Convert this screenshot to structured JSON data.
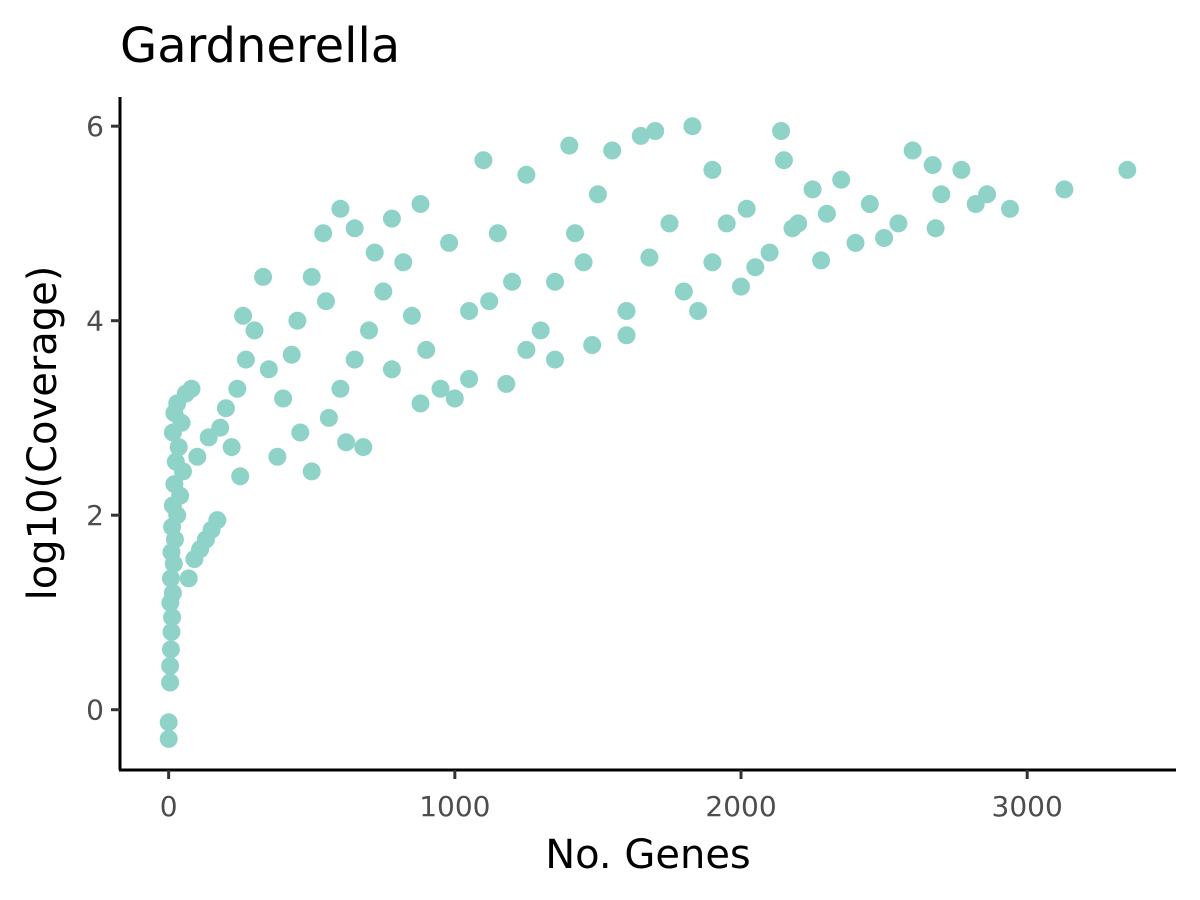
{
  "chart_data": {
    "type": "scatter",
    "title": "Gardnerella",
    "xlabel": "No. Genes",
    "ylabel": "log10(Coverage)",
    "xlim": [
      -170,
      3520
    ],
    "ylim": [
      -0.62,
      6.3
    ],
    "xticks": [
      0,
      1000,
      2000,
      3000
    ],
    "xtick_labels": [
      "0",
      "1000",
      "2000",
      "3000"
    ],
    "yticks": [
      0,
      2,
      4,
      6
    ],
    "ytick_labels": [
      "0",
      "2",
      "4",
      "6"
    ],
    "grid": false,
    "legend": "none",
    "point_color": "#8fd3c8",
    "series": [
      {
        "name": "",
        "points": [
          [
            0,
            -0.3
          ],
          [
            0,
            -0.13
          ],
          [
            5,
            0.28
          ],
          [
            5,
            0.45
          ],
          [
            8,
            0.62
          ],
          [
            10,
            0.8
          ],
          [
            12,
            0.95
          ],
          [
            6,
            1.1
          ],
          [
            15,
            1.2
          ],
          [
            8,
            1.35
          ],
          [
            18,
            1.5
          ],
          [
            10,
            1.62
          ],
          [
            22,
            1.75
          ],
          [
            12,
            1.88
          ],
          [
            30,
            2.0
          ],
          [
            15,
            2.1
          ],
          [
            40,
            2.2
          ],
          [
            20,
            2.32
          ],
          [
            50,
            2.45
          ],
          [
            25,
            2.55
          ],
          [
            35,
            2.7
          ],
          [
            15,
            2.85
          ],
          [
            45,
            2.95
          ],
          [
            20,
            3.05
          ],
          [
            30,
            3.15
          ],
          [
            60,
            3.25
          ],
          [
            80,
            3.3
          ],
          [
            70,
            1.35
          ],
          [
            90,
            1.55
          ],
          [
            110,
            1.65
          ],
          [
            130,
            1.75
          ],
          [
            150,
            1.85
          ],
          [
            170,
            1.95
          ],
          [
            100,
            2.6
          ],
          [
            140,
            2.8
          ],
          [
            180,
            2.9
          ],
          [
            220,
            2.7
          ],
          [
            250,
            2.4
          ],
          [
            200,
            3.1
          ],
          [
            240,
            3.3
          ],
          [
            270,
            3.6
          ],
          [
            260,
            4.05
          ],
          [
            330,
            4.45
          ],
          [
            300,
            3.9
          ],
          [
            350,
            3.5
          ],
          [
            400,
            3.2
          ],
          [
            380,
            2.6
          ],
          [
            460,
            2.85
          ],
          [
            500,
            2.45
          ],
          [
            560,
            3.0
          ],
          [
            600,
            3.3
          ],
          [
            620,
            2.75
          ],
          [
            680,
            2.7
          ],
          [
            650,
            3.6
          ],
          [
            700,
            3.9
          ],
          [
            750,
            4.3
          ],
          [
            720,
            4.7
          ],
          [
            600,
            5.15
          ],
          [
            540,
            4.9
          ],
          [
            650,
            4.95
          ],
          [
            500,
            4.45
          ],
          [
            450,
            4.0
          ],
          [
            430,
            3.65
          ],
          [
            550,
            4.2
          ],
          [
            780,
            5.05
          ],
          [
            820,
            4.6
          ],
          [
            880,
            5.2
          ],
          [
            900,
            3.7
          ],
          [
            950,
            3.3
          ],
          [
            1000,
            3.2
          ],
          [
            1050,
            4.1
          ],
          [
            1100,
            5.65
          ],
          [
            1150,
            4.9
          ],
          [
            1200,
            4.4
          ],
          [
            1250,
            3.7
          ],
          [
            1300,
            3.9
          ],
          [
            1350,
            3.6
          ],
          [
            1400,
            5.8
          ],
          [
            1450,
            4.6
          ],
          [
            1500,
            5.3
          ],
          [
            1550,
            5.75
          ],
          [
            1600,
            4.1
          ],
          [
            1650,
            5.9
          ],
          [
            1700,
            5.95
          ],
          [
            1750,
            5.0
          ],
          [
            1800,
            4.3
          ],
          [
            1850,
            4.1
          ],
          [
            1900,
            4.6
          ],
          [
            1950,
            5.0
          ],
          [
            2000,
            4.35
          ],
          [
            2050,
            4.55
          ],
          [
            2100,
            4.7
          ],
          [
            2150,
            5.65
          ],
          [
            2140,
            5.95
          ],
          [
            2200,
            5.0
          ],
          [
            2250,
            5.35
          ],
          [
            2280,
            4.62
          ],
          [
            2350,
            5.45
          ],
          [
            2400,
            4.8
          ],
          [
            2450,
            5.2
          ],
          [
            2500,
            4.85
          ],
          [
            2550,
            5.0
          ],
          [
            2600,
            5.75
          ],
          [
            2670,
            5.6
          ],
          [
            2700,
            5.3
          ],
          [
            2680,
            4.95
          ],
          [
            2770,
            5.55
          ],
          [
            2820,
            5.2
          ],
          [
            2860,
            5.3
          ],
          [
            2940,
            5.15
          ],
          [
            3130,
            5.35
          ],
          [
            3350,
            5.55
          ],
          [
            1830,
            6.0
          ],
          [
            1250,
            5.5
          ],
          [
            980,
            4.8
          ],
          [
            1120,
            4.2
          ],
          [
            850,
            4.05
          ],
          [
            780,
            3.5
          ],
          [
            1420,
            4.9
          ],
          [
            1680,
            4.65
          ],
          [
            1900,
            5.55
          ],
          [
            2020,
            5.15
          ],
          [
            2180,
            4.95
          ],
          [
            2300,
            5.1
          ],
          [
            1600,
            3.85
          ],
          [
            1480,
            3.75
          ],
          [
            1350,
            4.4
          ],
          [
            1050,
            3.4
          ],
          [
            880,
            3.15
          ],
          [
            1180,
            3.35
          ]
        ]
      }
    ]
  }
}
